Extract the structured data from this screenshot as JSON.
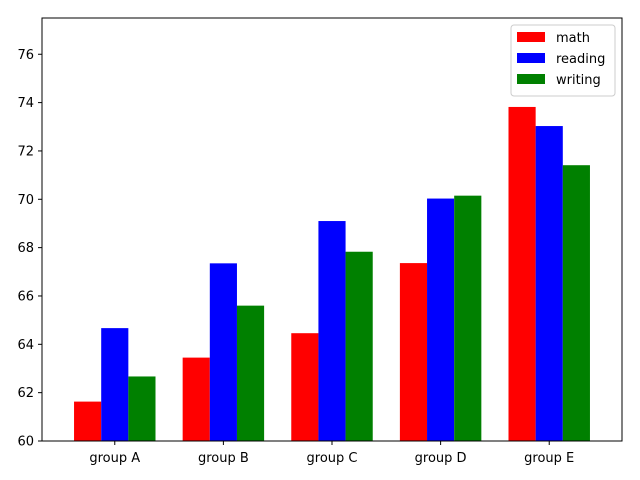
{
  "chart_data": {
    "type": "bar",
    "title": "",
    "xlabel": "",
    "ylabel": "",
    "categories": [
      "group A",
      "group B",
      "group C",
      "group D",
      "group E"
    ],
    "series": [
      {
        "name": "math",
        "color": "#ff0000",
        "values": [
          61.63,
          63.45,
          64.46,
          67.36,
          73.82
        ]
      },
      {
        "name": "reading",
        "color": "#0000ff",
        "values": [
          64.67,
          67.35,
          69.1,
          70.03,
          73.03
        ]
      },
      {
        "name": "writing",
        "color": "#008000",
        "values": [
          62.67,
          65.6,
          67.83,
          70.15,
          71.41
        ]
      }
    ],
    "ylim": [
      60,
      77.5
    ],
    "yticks": [
      60,
      62,
      64,
      66,
      68,
      70,
      72,
      74,
      76
    ],
    "grid": false,
    "legend_position": "top-right"
  }
}
